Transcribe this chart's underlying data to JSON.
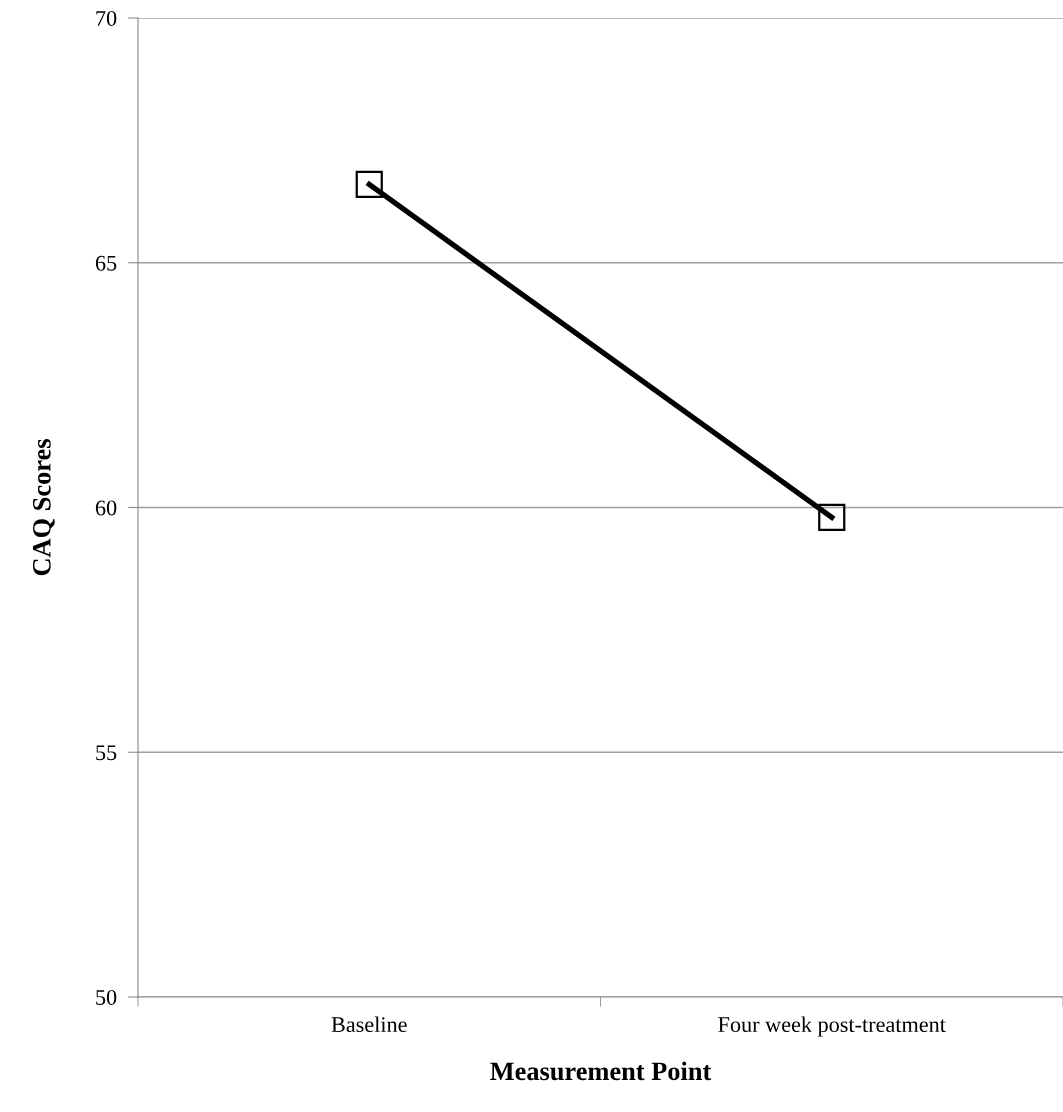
{
  "chart_data": {
    "type": "line",
    "xlabel": "Measurement Point",
    "ylabel": "CAQ Scores",
    "categories": [
      "Baseline",
      "Four week post-treatment"
    ],
    "series": [
      {
        "color": "#000000",
        "values": [
          66.6,
          59.8
        ]
      }
    ],
    "ylim": [
      50,
      70
    ],
    "yticks": [
      50,
      55,
      60,
      65,
      70
    ],
    "grid": "y",
    "marker": "square",
    "line_style": "solid"
  }
}
